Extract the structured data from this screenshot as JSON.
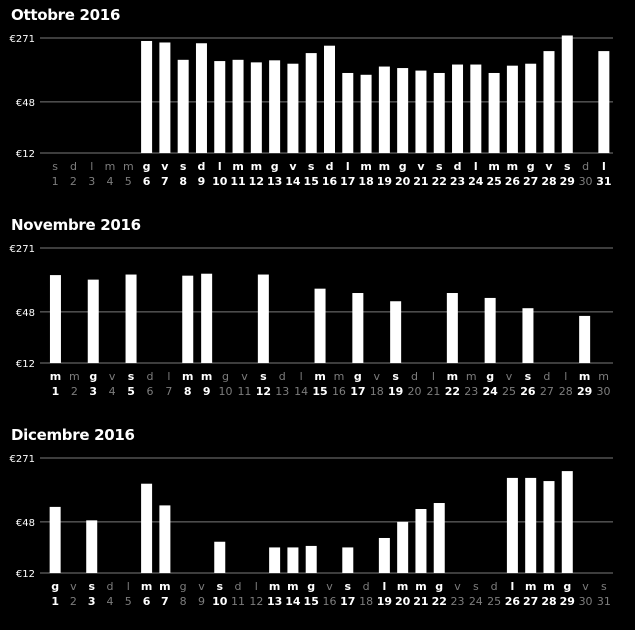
{
  "chart_data": [
    {
      "type": "bar",
      "title": "Ottobre 2016",
      "y_tick_labels": [
        "€271",
        "€48",
        "€12"
      ],
      "yscale": "log",
      "ylim": [
        12,
        271
      ],
      "days": [
        "1",
        "2",
        "3",
        "4",
        "5",
        "6",
        "7",
        "8",
        "9",
        "10",
        "11",
        "12",
        "13",
        "14",
        "15",
        "16",
        "17",
        "18",
        "19",
        "20",
        "21",
        "22",
        "23",
        "24",
        "25",
        "26",
        "27",
        "28",
        "29",
        "30",
        "31"
      ],
      "weekdays": [
        "s",
        "d",
        "l",
        "m",
        "m",
        "g",
        "v",
        "s",
        "d",
        "l",
        "m",
        "m",
        "g",
        "v",
        "s",
        "d",
        "l",
        "m",
        "m",
        "g",
        "v",
        "s",
        "d",
        "l",
        "m",
        "m",
        "g",
        "v",
        "s",
        "d",
        "l"
      ],
      "values": [
        null,
        null,
        null,
        null,
        null,
        250,
        240,
        150,
        235,
        145,
        150,
        140,
        148,
        135,
        180,
        220,
        105,
        100,
        125,
        120,
        112,
        105,
        132,
        132,
        105,
        128,
        135,
        190,
        290,
        null,
        190
      ]
    },
    {
      "type": "bar",
      "title": "Novembre 2016",
      "y_tick_labels": [
        "€271",
        "€48",
        "€12"
      ],
      "yscale": "log",
      "ylim": [
        12,
        271
      ],
      "days": [
        "1",
        "2",
        "3",
        "4",
        "5",
        "6",
        "7",
        "8",
        "9",
        "10",
        "11",
        "12",
        "13",
        "14",
        "15",
        "16",
        "17",
        "18",
        "19",
        "20",
        "21",
        "22",
        "23",
        "24",
        "25",
        "26",
        "27",
        "28",
        "29",
        "30"
      ],
      "weekdays": [
        "m",
        "m",
        "g",
        "v",
        "s",
        "d",
        "l",
        "m",
        "m",
        "g",
        "v",
        "s",
        "d",
        "l",
        "m",
        "m",
        "g",
        "v",
        "s",
        "d",
        "l",
        "m",
        "m",
        "g",
        "v",
        "s",
        "d",
        "l",
        "m",
        "m"
      ],
      "values": [
        130,
        null,
        115,
        null,
        132,
        null,
        null,
        128,
        135,
        null,
        null,
        132,
        null,
        null,
        90,
        null,
        80,
        null,
        64,
        null,
        null,
        80,
        null,
        70,
        null,
        53,
        null,
        null,
        43,
        null
      ]
    },
    {
      "type": "bar",
      "title": "Dicembre 2016",
      "y_tick_labels": [
        "€271",
        "€48",
        "€12"
      ],
      "yscale": "log",
      "ylim": [
        12,
        271
      ],
      "days": [
        "1",
        "2",
        "3",
        "4",
        "5",
        "6",
        "7",
        "8",
        "9",
        "10",
        "11",
        "12",
        "13",
        "14",
        "15",
        "16",
        "17",
        "18",
        "19",
        "20",
        "21",
        "22",
        "23",
        "24",
        "25",
        "26",
        "27",
        "28",
        "29",
        "30",
        "31"
      ],
      "weekdays": [
        "g",
        "v",
        "s",
        "d",
        "l",
        "m",
        "m",
        "g",
        "v",
        "s",
        "d",
        "l",
        "m",
        "m",
        "g",
        "v",
        "s",
        "d",
        "l",
        "m",
        "m",
        "g",
        "v",
        "s",
        "d",
        "l",
        "m",
        "m",
        "g",
        "v",
        "s"
      ],
      "values": [
        72,
        null,
        50,
        null,
        null,
        135,
        75,
        null,
        null,
        28,
        null,
        null,
        24,
        24,
        25,
        null,
        24,
        null,
        31,
        48,
        68,
        80,
        null,
        null,
        null,
        158,
        158,
        145,
        190,
        null,
        null
      ]
    }
  ]
}
